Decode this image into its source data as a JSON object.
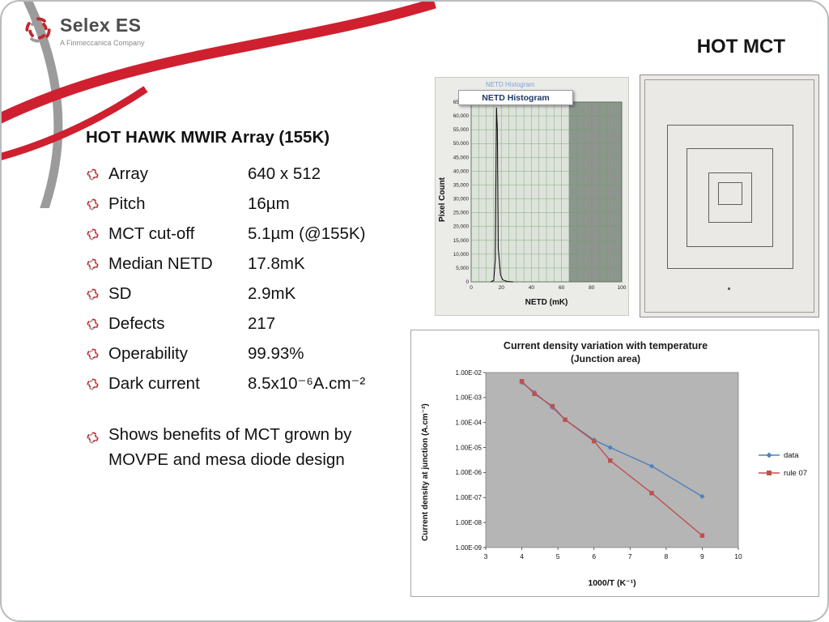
{
  "slide": {
    "title": "HOT MCT",
    "logo": {
      "brand": "Selex ES",
      "tagline": "A Finmeccanica Company"
    }
  },
  "specs": {
    "heading": "HOT HAWK MWIR Array (155K)",
    "items": [
      {
        "label": "Array",
        "value": "640 x 512"
      },
      {
        "label": "Pitch",
        "value": "16µm"
      },
      {
        "label": "MCT cut-off",
        "value": "5.1µm (@155K)"
      },
      {
        "label": "Median NETD",
        "value": "17.8mK"
      },
      {
        "label": "SD",
        "value": "2.9mK"
      },
      {
        "label": "Defects",
        "value": "217"
      },
      {
        "label": "Operability",
        "value": "99.93%"
      },
      {
        "label": "Dark current",
        "value": "8.5x10⁻⁶A.cm⁻²"
      }
    ],
    "note": "Shows benefits of MCT grown by MOVPE and mesa diode design"
  },
  "histogram_overlay": {
    "faint_title": "NETD Histogram"
  },
  "chart_data": [
    {
      "type": "histogram",
      "title": "NETD Histogram",
      "xlabel": "NETD (mK)",
      "ylabel": "Pixel Count",
      "xlim": [
        0,
        100
      ],
      "ylim": [
        0,
        65000
      ],
      "x_ticks": [
        0,
        20,
        40,
        60,
        80,
        100
      ],
      "y_tick_step": 5000,
      "grid": true,
      "grid_color": "#6aa06a",
      "plot_bg": "#dde2da",
      "shaded_region": {
        "from": 65,
        "to": 100,
        "color": "#8e958e"
      },
      "peak_x": 17,
      "peak_y": 63000,
      "spike_points": [
        [
          13,
          0
        ],
        [
          15,
          500
        ],
        [
          16,
          8000
        ],
        [
          16.8,
          63000
        ],
        [
          17.4,
          55000
        ],
        [
          18,
          12000
        ],
        [
          19.5,
          2500
        ],
        [
          21,
          700
        ],
        [
          24,
          150
        ],
        [
          28,
          0
        ]
      ]
    },
    {
      "type": "line",
      "title": "Current density variation with temperature",
      "subtitle": "(Junction area)",
      "xlabel": "1000/T  (K⁻¹)",
      "ylabel": "Current density at junction (A.cm⁻²)",
      "xlim": [
        3,
        10
      ],
      "x_ticks": [
        3,
        4,
        5,
        6,
        7,
        8,
        9,
        10
      ],
      "y_ticks": [
        "1.00E-02",
        "1.00E-03",
        "1.00E-04",
        "1.00E-05",
        "1.00E-06",
        "1.00E-07",
        "1.00E-08",
        "1.00E-09"
      ],
      "ylog_range": [
        -2,
        -9
      ],
      "plot_bg": "#b5b5b5",
      "legend_position": "right",
      "series": [
        {
          "name": "data",
          "color": "#4f81bd",
          "marker": "diamond",
          "points": [
            [
              4,
              0.004
            ],
            [
              4.35,
              0.0016
            ],
            [
              4.85,
              0.0004
            ],
            [
              5.2,
              0.00013
            ],
            [
              6,
              2e-05
            ],
            [
              6.45,
              1e-05
            ],
            [
              7.6,
              1.8e-06
            ],
            [
              9,
              1.1e-07
            ]
          ]
        },
        {
          "name": "rule 07",
          "color": "#c0504d",
          "marker": "square",
          "points": [
            [
              4,
              0.0045
            ],
            [
              4.35,
              0.0014
            ],
            [
              4.85,
              0.00045
            ],
            [
              5.2,
              0.00013
            ],
            [
              6,
              1.8e-05
            ],
            [
              6.45,
              3e-06
            ],
            [
              7.6,
              1.5e-07
            ],
            [
              9,
              3e-09
            ]
          ]
        }
      ]
    }
  ]
}
